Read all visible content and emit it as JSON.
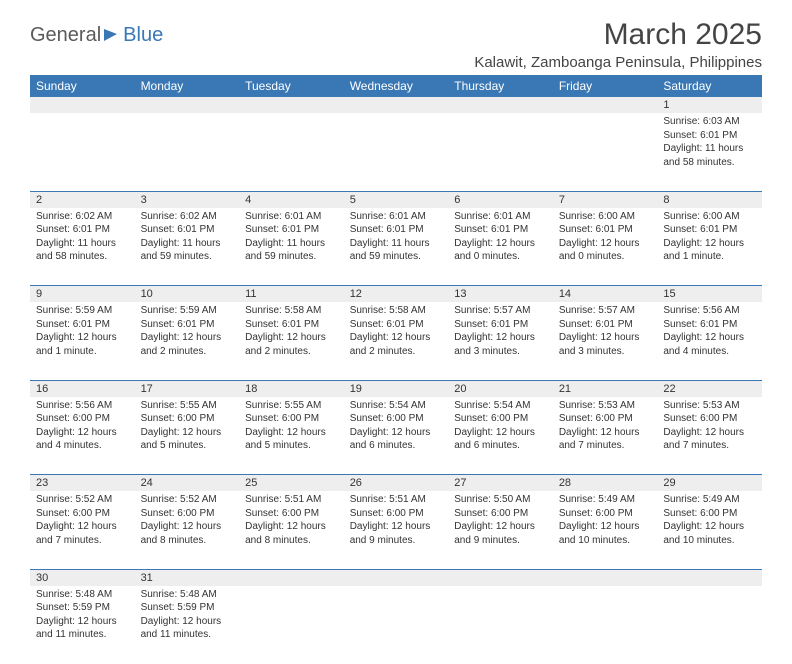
{
  "logo": {
    "part1": "General",
    "part2": "Blue"
  },
  "title": "March 2025",
  "location": "Kalawit, Zamboanga Peninsula, Philippines",
  "colors": {
    "header_bg": "#3a78b5",
    "header_text": "#ffffff",
    "daynum_bg": "#eeeeee",
    "border": "#3a78b5"
  },
  "weekdays": [
    "Sunday",
    "Monday",
    "Tuesday",
    "Wednesday",
    "Thursday",
    "Friday",
    "Saturday"
  ],
  "weeks": [
    [
      null,
      null,
      null,
      null,
      null,
      null,
      {
        "n": "1",
        "sr": "Sunrise: 6:03 AM",
        "ss": "Sunset: 6:01 PM",
        "dl": "Daylight: 11 hours and 58 minutes."
      }
    ],
    [
      {
        "n": "2",
        "sr": "Sunrise: 6:02 AM",
        "ss": "Sunset: 6:01 PM",
        "dl": "Daylight: 11 hours and 58 minutes."
      },
      {
        "n": "3",
        "sr": "Sunrise: 6:02 AM",
        "ss": "Sunset: 6:01 PM",
        "dl": "Daylight: 11 hours and 59 minutes."
      },
      {
        "n": "4",
        "sr": "Sunrise: 6:01 AM",
        "ss": "Sunset: 6:01 PM",
        "dl": "Daylight: 11 hours and 59 minutes."
      },
      {
        "n": "5",
        "sr": "Sunrise: 6:01 AM",
        "ss": "Sunset: 6:01 PM",
        "dl": "Daylight: 11 hours and 59 minutes."
      },
      {
        "n": "6",
        "sr": "Sunrise: 6:01 AM",
        "ss": "Sunset: 6:01 PM",
        "dl": "Daylight: 12 hours and 0 minutes."
      },
      {
        "n": "7",
        "sr": "Sunrise: 6:00 AM",
        "ss": "Sunset: 6:01 PM",
        "dl": "Daylight: 12 hours and 0 minutes."
      },
      {
        "n": "8",
        "sr": "Sunrise: 6:00 AM",
        "ss": "Sunset: 6:01 PM",
        "dl": "Daylight: 12 hours and 1 minute."
      }
    ],
    [
      {
        "n": "9",
        "sr": "Sunrise: 5:59 AM",
        "ss": "Sunset: 6:01 PM",
        "dl": "Daylight: 12 hours and 1 minute."
      },
      {
        "n": "10",
        "sr": "Sunrise: 5:59 AM",
        "ss": "Sunset: 6:01 PM",
        "dl": "Daylight: 12 hours and 2 minutes."
      },
      {
        "n": "11",
        "sr": "Sunrise: 5:58 AM",
        "ss": "Sunset: 6:01 PM",
        "dl": "Daylight: 12 hours and 2 minutes."
      },
      {
        "n": "12",
        "sr": "Sunrise: 5:58 AM",
        "ss": "Sunset: 6:01 PM",
        "dl": "Daylight: 12 hours and 2 minutes."
      },
      {
        "n": "13",
        "sr": "Sunrise: 5:57 AM",
        "ss": "Sunset: 6:01 PM",
        "dl": "Daylight: 12 hours and 3 minutes."
      },
      {
        "n": "14",
        "sr": "Sunrise: 5:57 AM",
        "ss": "Sunset: 6:01 PM",
        "dl": "Daylight: 12 hours and 3 minutes."
      },
      {
        "n": "15",
        "sr": "Sunrise: 5:56 AM",
        "ss": "Sunset: 6:01 PM",
        "dl": "Daylight: 12 hours and 4 minutes."
      }
    ],
    [
      {
        "n": "16",
        "sr": "Sunrise: 5:56 AM",
        "ss": "Sunset: 6:00 PM",
        "dl": "Daylight: 12 hours and 4 minutes."
      },
      {
        "n": "17",
        "sr": "Sunrise: 5:55 AM",
        "ss": "Sunset: 6:00 PM",
        "dl": "Daylight: 12 hours and 5 minutes."
      },
      {
        "n": "18",
        "sr": "Sunrise: 5:55 AM",
        "ss": "Sunset: 6:00 PM",
        "dl": "Daylight: 12 hours and 5 minutes."
      },
      {
        "n": "19",
        "sr": "Sunrise: 5:54 AM",
        "ss": "Sunset: 6:00 PM",
        "dl": "Daylight: 12 hours and 6 minutes."
      },
      {
        "n": "20",
        "sr": "Sunrise: 5:54 AM",
        "ss": "Sunset: 6:00 PM",
        "dl": "Daylight: 12 hours and 6 minutes."
      },
      {
        "n": "21",
        "sr": "Sunrise: 5:53 AM",
        "ss": "Sunset: 6:00 PM",
        "dl": "Daylight: 12 hours and 7 minutes."
      },
      {
        "n": "22",
        "sr": "Sunrise: 5:53 AM",
        "ss": "Sunset: 6:00 PM",
        "dl": "Daylight: 12 hours and 7 minutes."
      }
    ],
    [
      {
        "n": "23",
        "sr": "Sunrise: 5:52 AM",
        "ss": "Sunset: 6:00 PM",
        "dl": "Daylight: 12 hours and 7 minutes."
      },
      {
        "n": "24",
        "sr": "Sunrise: 5:52 AM",
        "ss": "Sunset: 6:00 PM",
        "dl": "Daylight: 12 hours and 8 minutes."
      },
      {
        "n": "25",
        "sr": "Sunrise: 5:51 AM",
        "ss": "Sunset: 6:00 PM",
        "dl": "Daylight: 12 hours and 8 minutes."
      },
      {
        "n": "26",
        "sr": "Sunrise: 5:51 AM",
        "ss": "Sunset: 6:00 PM",
        "dl": "Daylight: 12 hours and 9 minutes."
      },
      {
        "n": "27",
        "sr": "Sunrise: 5:50 AM",
        "ss": "Sunset: 6:00 PM",
        "dl": "Daylight: 12 hours and 9 minutes."
      },
      {
        "n": "28",
        "sr": "Sunrise: 5:49 AM",
        "ss": "Sunset: 6:00 PM",
        "dl": "Daylight: 12 hours and 10 minutes."
      },
      {
        "n": "29",
        "sr": "Sunrise: 5:49 AM",
        "ss": "Sunset: 6:00 PM",
        "dl": "Daylight: 12 hours and 10 minutes."
      }
    ],
    [
      {
        "n": "30",
        "sr": "Sunrise: 5:48 AM",
        "ss": "Sunset: 5:59 PM",
        "dl": "Daylight: 12 hours and 11 minutes."
      },
      {
        "n": "31",
        "sr": "Sunrise: 5:48 AM",
        "ss": "Sunset: 5:59 PM",
        "dl": "Daylight: 12 hours and 11 minutes."
      },
      null,
      null,
      null,
      null,
      null
    ]
  ]
}
